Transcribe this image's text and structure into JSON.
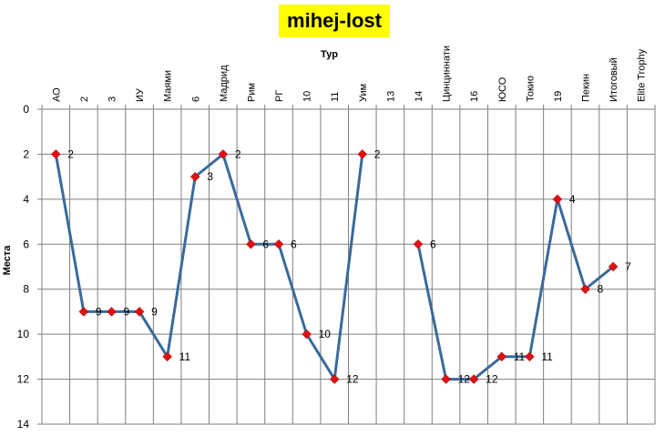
{
  "chart_data": {
    "type": "line",
    "title": "mihej-lost",
    "xlabel": "Тур",
    "ylabel": "Места",
    "categories": [
      "АО",
      "2",
      "3",
      "ИУ",
      "Маями",
      "6",
      "Мадрид",
      "Рим",
      "РГ",
      "10",
      "11",
      "Уим",
      "13",
      "14",
      "Цинциннати",
      "16",
      "ЮСО",
      "Токио",
      "19",
      "Пекин",
      "Итоговый",
      "Elite Trophy"
    ],
    "series": [
      {
        "values": [
          2,
          9,
          9,
          9,
          11,
          3,
          2,
          6,
          6,
          10,
          12,
          2,
          null,
          6,
          12,
          12,
          11,
          11,
          4,
          8,
          7,
          null
        ]
      }
    ],
    "y_ticks": [
      0,
      2,
      4,
      6,
      8,
      10,
      12,
      14
    ],
    "ylim": [
      0,
      14
    ],
    "y_reversed": true,
    "x_axis_position": "top",
    "grid": true,
    "data_labels": true,
    "line_color": "#3a6a9a",
    "marker_color": "#dd1111",
    "title_background": "#ffff00"
  }
}
